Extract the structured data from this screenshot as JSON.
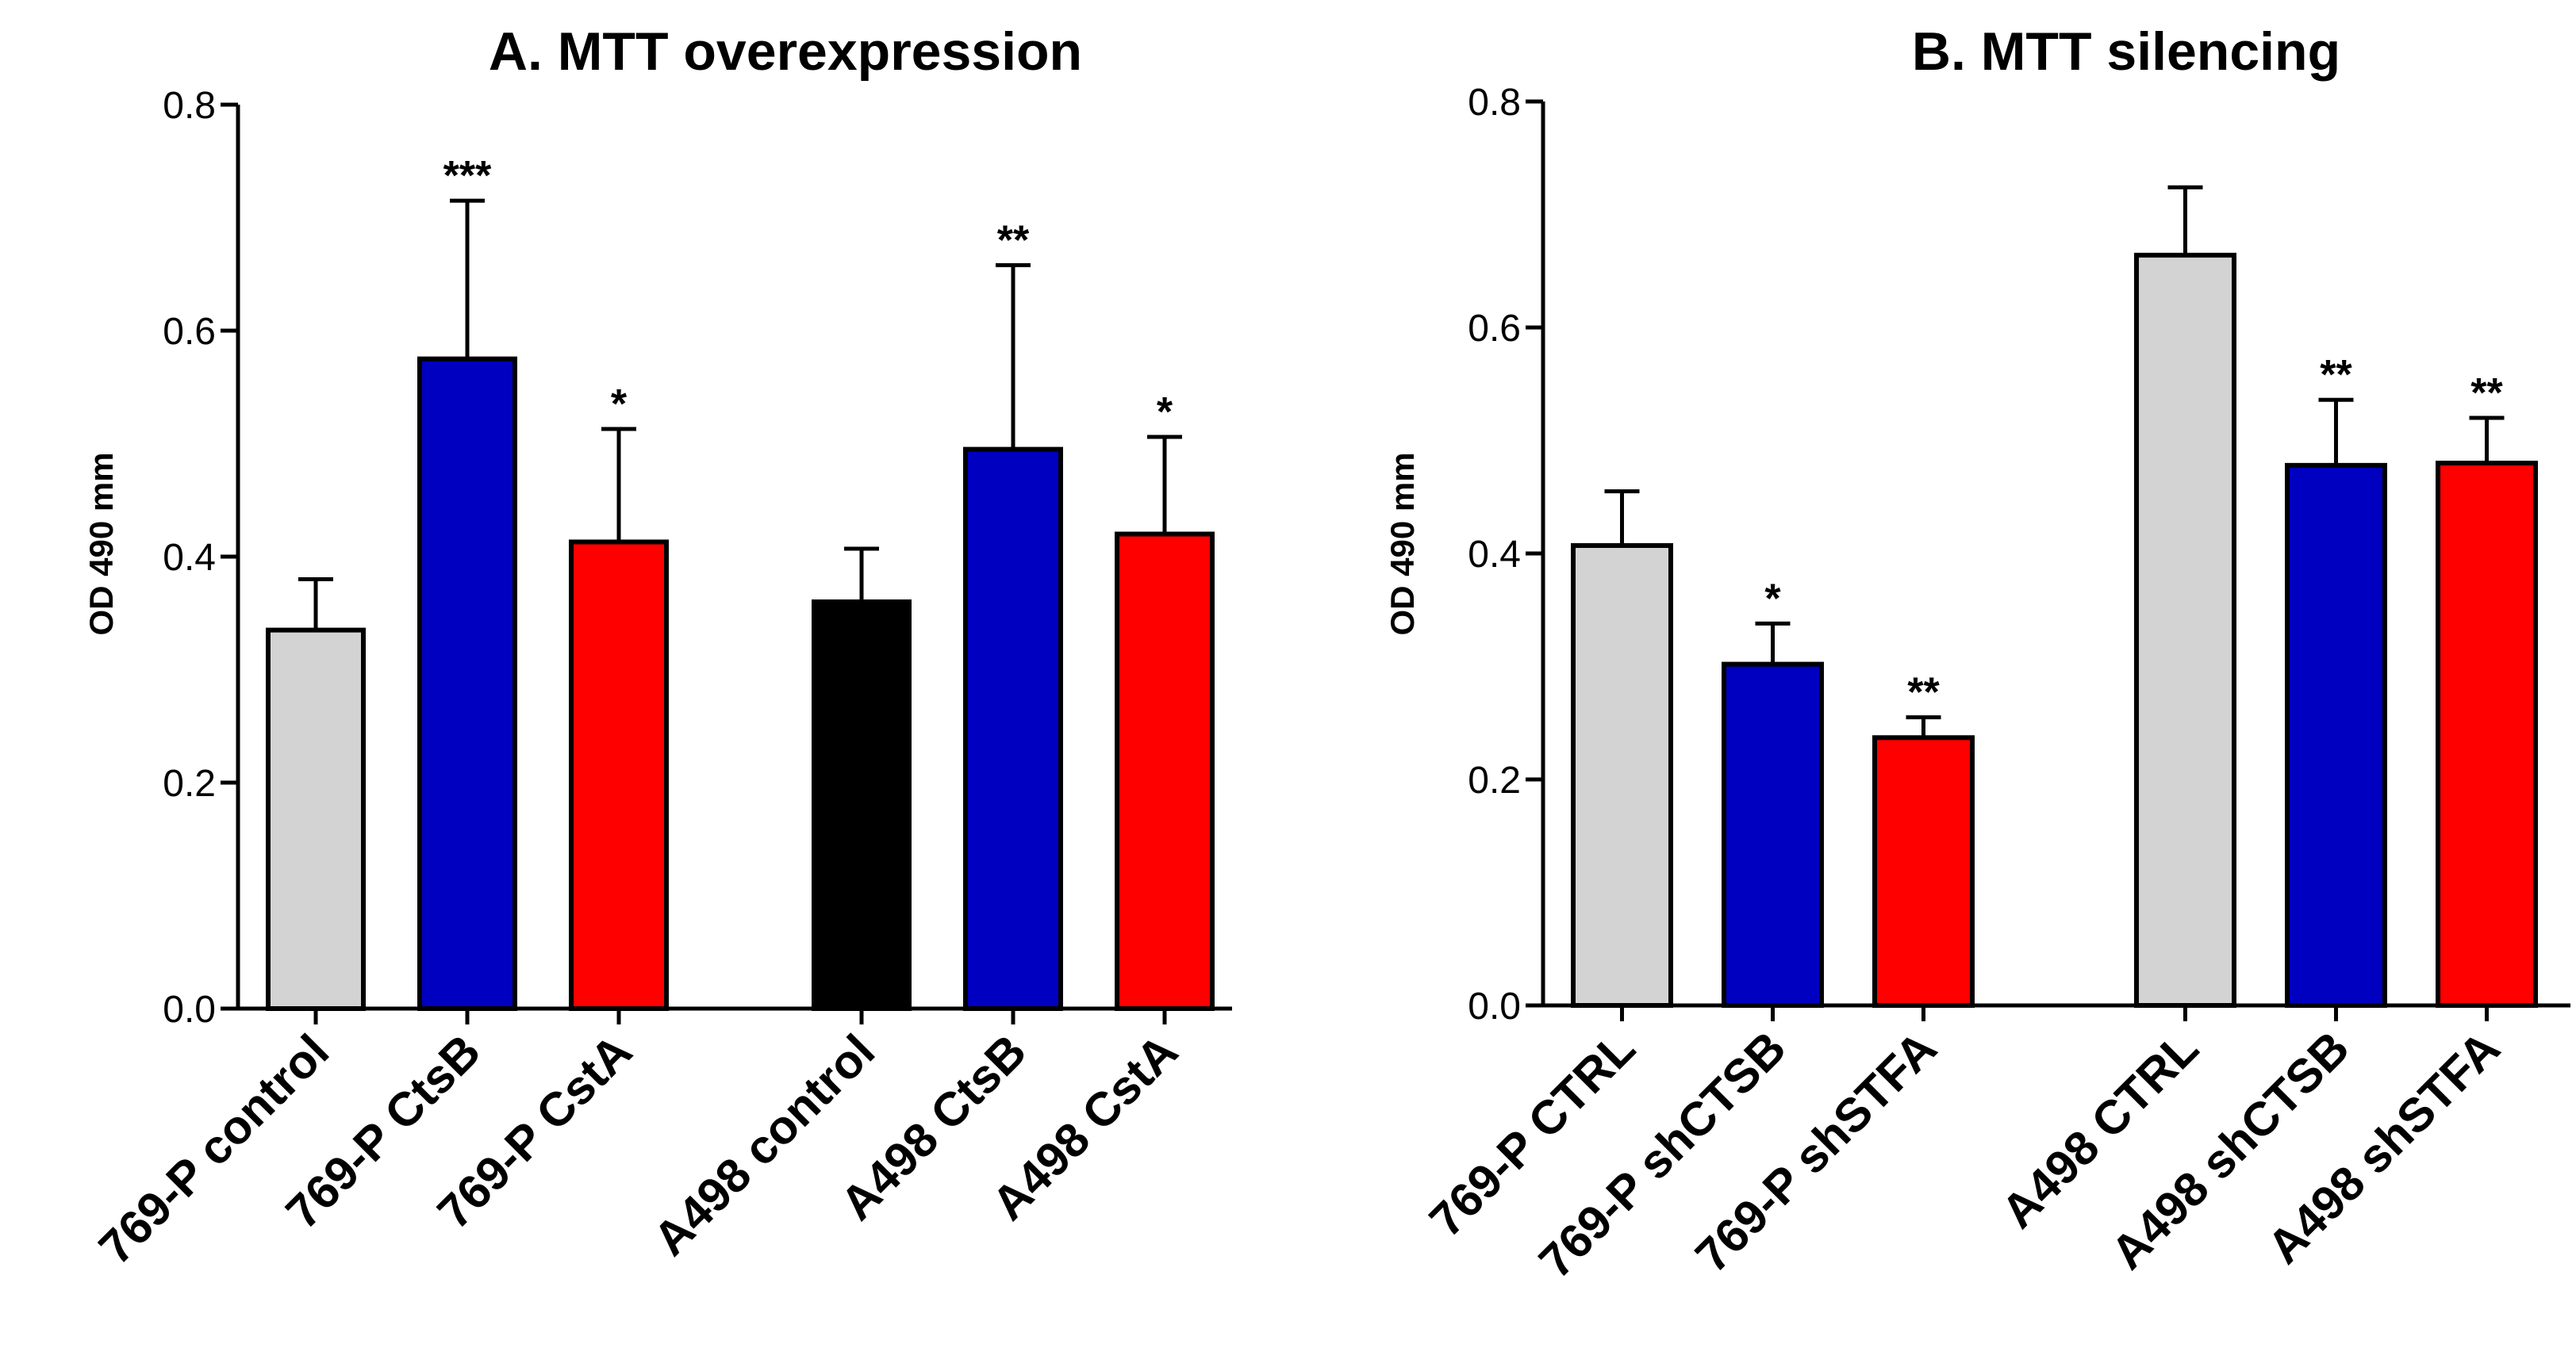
{
  "chart_data": [
    {
      "type": "bar",
      "title": "A. MTT overexpression",
      "xlabel": "",
      "ylabel": "OD 490 mm",
      "ylim": [
        0,
        0.8
      ],
      "yticks": [
        "0.0",
        "0.2",
        "0.4",
        "0.6",
        "0.8"
      ],
      "grid": false,
      "groups": [
        {
          "categories": [
            "769-P control",
            "769-P CtsB",
            "769-P CstA"
          ],
          "values": [
            0.335,
            0.575,
            0.413
          ],
          "errors": [
            0.045,
            0.14,
            0.1
          ],
          "significance": [
            "",
            "***",
            "*"
          ],
          "colors": [
            "#d3d3d3",
            "#0000c0",
            "#ff0000"
          ]
        },
        {
          "categories": [
            "A498 control",
            "A498 CtsB",
            "A498 CstA"
          ],
          "values": [
            0.36,
            0.495,
            0.42
          ],
          "errors": [
            0.047,
            0.163,
            0.086
          ],
          "significance": [
            "",
            "**",
            "*"
          ],
          "colors": [
            "#000000",
            "#0000c0",
            "#ff0000"
          ]
        }
      ]
    },
    {
      "type": "bar",
      "title": "B. MTT silencing",
      "xlabel": "",
      "ylabel": "OD 490 mm",
      "ylim": [
        0,
        0.8
      ],
      "yticks": [
        "0.0",
        "0.2",
        "0.4",
        "0.6",
        "0.8"
      ],
      "grid": false,
      "groups": [
        {
          "categories": [
            "769-P CTRL",
            "769-P shCTSB",
            "769-P shSTFA"
          ],
          "values": [
            0.407,
            0.302,
            0.237
          ],
          "errors": [
            0.048,
            0.036,
            0.018
          ],
          "significance": [
            "",
            "*",
            "**"
          ],
          "colors": [
            "#d3d3d3",
            "#0000c0",
            "#ff0000"
          ]
        },
        {
          "categories": [
            "A498 CTRL",
            "A498 shCTSB",
            "A498 shSTFA"
          ],
          "values": [
            0.664,
            0.478,
            0.48
          ],
          "errors": [
            0.06,
            0.058,
            0.04
          ],
          "significance": [
            "",
            "**",
            "**"
          ],
          "colors": [
            "#d3d3d3",
            "#0000c0",
            "#ff0000"
          ]
        }
      ]
    }
  ]
}
